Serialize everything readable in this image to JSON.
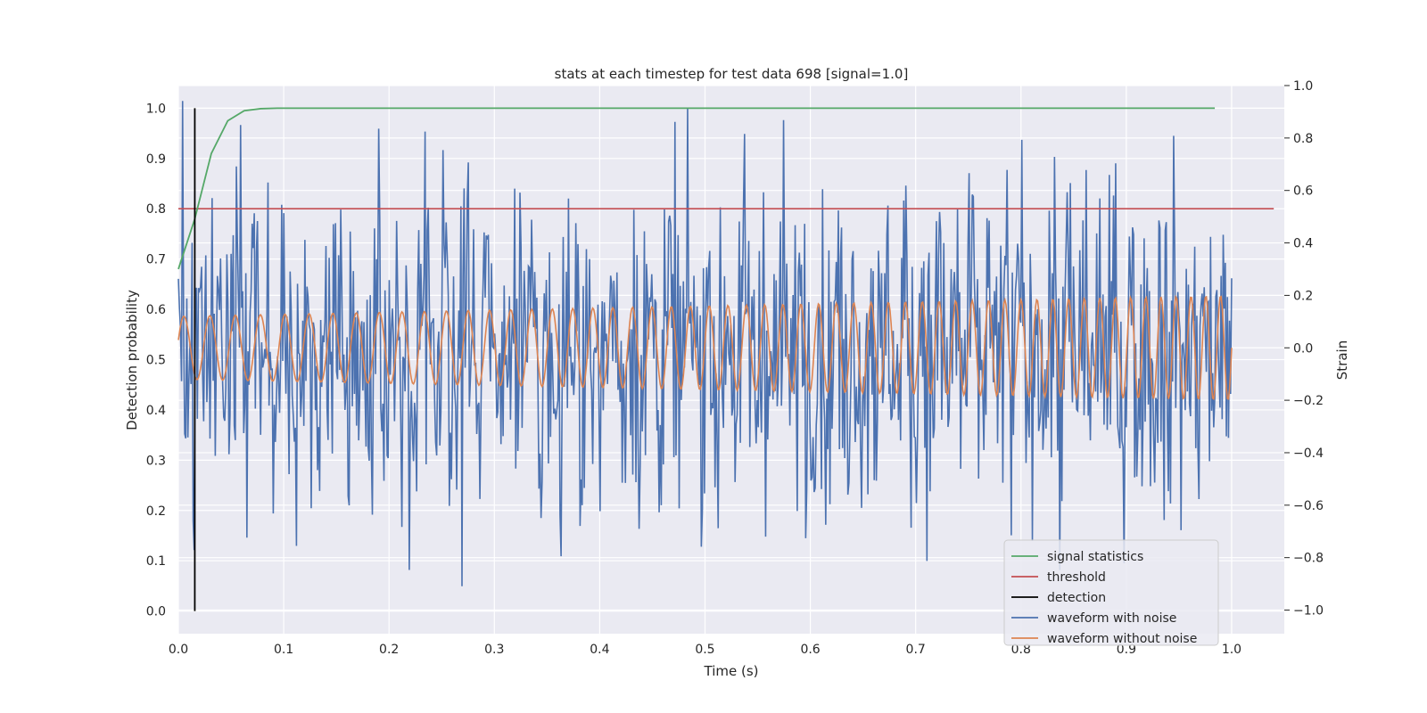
{
  "chart_data": {
    "type": "line",
    "title": "stats at each timestep for test data 698 [signal=1.0]",
    "xlabel": "Time (s)",
    "ylabel_left": "Detection probability",
    "ylabel_right": "Strain",
    "xlim": [
      0.0,
      1.05
    ],
    "ylim_left": [
      -0.045,
      1.045
    ],
    "ylim_right": [
      -1.09,
      1.0
    ],
    "x_ticks": [
      "0.0",
      "0.1",
      "0.2",
      "0.3",
      "0.4",
      "0.5",
      "0.6",
      "0.7",
      "0.8",
      "0.9",
      "1.0"
    ],
    "y_ticks_left": [
      "0.0",
      "0.1",
      "0.2",
      "0.3",
      "0.4",
      "0.5",
      "0.6",
      "0.7",
      "0.8",
      "0.9",
      "1.0"
    ],
    "y_ticks_right": [
      "−1.0",
      "−0.8",
      "−0.6",
      "−0.4",
      "−0.2",
      "0.0",
      "0.2",
      "0.4",
      "0.6",
      "0.8",
      "1.0"
    ],
    "y_tick_values_right": [
      -1.0,
      -0.8,
      -0.6,
      -0.4,
      -0.2,
      0.0,
      0.2,
      0.4,
      0.6,
      0.8,
      1.0
    ],
    "grid": true,
    "legend_position": "lower-right",
    "colors": {
      "signal_statistics": "#55a868",
      "threshold": "#c44e52",
      "detection": "#000000",
      "waveform_with_noise": "#4c72b0",
      "waveform_without_noise": "#dd8452",
      "background": "#eaeaf2",
      "grid": "#ffffff"
    },
    "series": [
      {
        "name": "signal statistics",
        "axis": "left",
        "x": [
          0.0,
          0.0156,
          0.0313,
          0.0469,
          0.0625,
          0.0781,
          0.0938,
          0.1094,
          0.125,
          0.1406,
          0.2,
          0.3,
          0.4,
          0.5,
          0.6,
          0.7,
          0.8,
          0.9,
          0.984
        ],
        "y": [
          0.68,
          0.78,
          0.91,
          0.975,
          0.995,
          0.999,
          1.0,
          1.0,
          1.0,
          1.0,
          1.0,
          1.0,
          1.0,
          1.0,
          1.0,
          1.0,
          1.0,
          1.0,
          1.0
        ]
      },
      {
        "name": "threshold",
        "axis": "left",
        "x": [
          0.0,
          1.04
        ],
        "y": [
          0.8,
          0.8
        ]
      },
      {
        "name": "detection",
        "axis": "left",
        "x": [
          0.0156,
          0.0156
        ],
        "y": [
          0.0,
          1.0
        ]
      },
      {
        "name": "waveform with noise",
        "axis": "right",
        "generated": true,
        "n_points": 1000,
        "x_range": [
          0.0,
          1.0
        ],
        "y_range": [
          -1.0,
          1.0
        ],
        "approx_std": 0.33
      },
      {
        "name": "waveform without noise",
        "axis": "right",
        "generated": true,
        "n_points": 1000,
        "x_range": [
          0.0,
          1.0
        ],
        "amplitude_start": 0.12,
        "amplitude_end": 0.2,
        "frequency_start_hz": 40,
        "frequency_end_hz": 72
      }
    ],
    "legend": [
      "signal statistics",
      "threshold",
      "detection",
      "waveform with noise",
      "waveform without noise"
    ]
  }
}
